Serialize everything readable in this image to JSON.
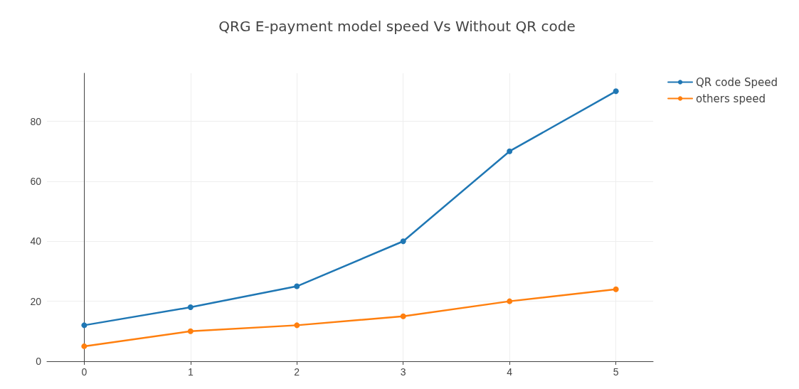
{
  "chart_data": {
    "type": "line",
    "title": "QRG E-payment model speed Vs Without QR code",
    "x": [
      0,
      1,
      2,
      3,
      4,
      5
    ],
    "series": [
      {
        "name": "QR code Speed",
        "color": "#1f77b4",
        "values": [
          12,
          18,
          25,
          40,
          70,
          90
        ]
      },
      {
        "name": "others speed",
        "color": "#ff7f0e",
        "values": [
          5,
          10,
          12,
          15,
          20,
          24
        ]
      }
    ],
    "xlim": [
      -0.35,
      5.35
    ],
    "xticks": [
      0,
      1,
      2,
      3,
      4,
      5
    ],
    "ylim": [
      0,
      96
    ],
    "yticks": [
      0,
      20,
      40,
      60,
      80
    ],
    "grid": true,
    "legend": "top right",
    "marker": "circle",
    "line_style": "solid"
  }
}
